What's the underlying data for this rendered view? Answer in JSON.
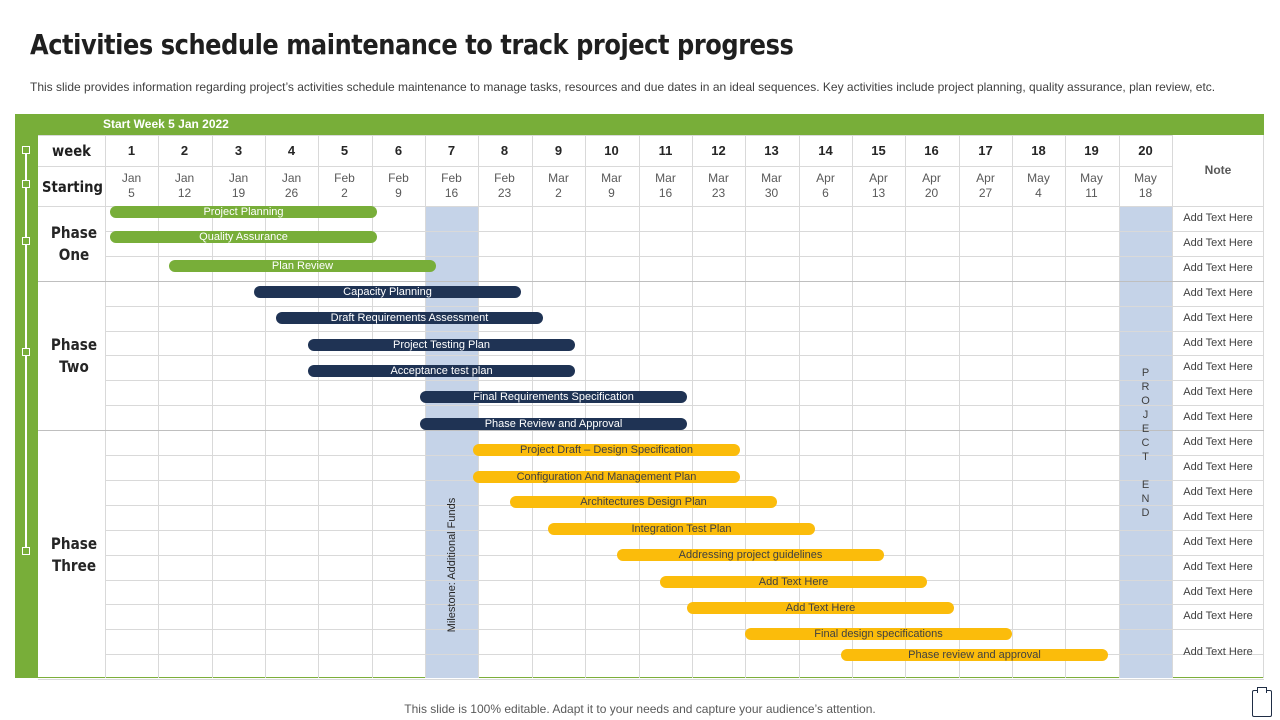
{
  "title": "Activities schedule maintenance to track project progress",
  "subtitle": "This slide provides information regarding project’s activities schedule maintenance to manage tasks, resources and due dates in an ideal sequences. Key activities include project planning, quality assurance, plan review, etc.",
  "start_week": "Start Week 5 Jan 2022",
  "header": {
    "week_label": "week",
    "starting_label": "Starting",
    "note_label": "Note"
  },
  "weeks": [
    {
      "num": "1",
      "month": "Jan",
      "day": "5"
    },
    {
      "num": "2",
      "month": "Jan",
      "day": "12"
    },
    {
      "num": "3",
      "month": "Jan",
      "day": "19"
    },
    {
      "num": "4",
      "month": "Jan",
      "day": "26"
    },
    {
      "num": "5",
      "month": "Feb",
      "day": "2"
    },
    {
      "num": "6",
      "month": "Feb",
      "day": "9"
    },
    {
      "num": "7",
      "month": "Feb",
      "day": "16"
    },
    {
      "num": "8",
      "month": "Feb",
      "day": "23"
    },
    {
      "num": "9",
      "month": "Mar",
      "day": "2"
    },
    {
      "num": "10",
      "month": "Mar",
      "day": "9"
    },
    {
      "num": "11",
      "month": "Mar",
      "day": "16"
    },
    {
      "num": "12",
      "month": "Mar",
      "day": "23"
    },
    {
      "num": "13",
      "month": "Mar",
      "day": "30"
    },
    {
      "num": "14",
      "month": "Apr",
      "day": "6"
    },
    {
      "num": "15",
      "month": "Apr",
      "day": "13"
    },
    {
      "num": "16",
      "month": "Apr",
      "day": "20"
    },
    {
      "num": "17",
      "month": "Apr",
      "day": "27"
    },
    {
      "num": "18",
      "month": "May",
      "day": "4"
    },
    {
      "num": "19",
      "month": "May",
      "day": "11"
    },
    {
      "num": "20",
      "month": "May",
      "day": "18"
    }
  ],
  "phases": [
    {
      "name": "Phase One"
    },
    {
      "name": "Phase Two"
    },
    {
      "name": "Phase Three"
    }
  ],
  "milestone": "Milestone: Additional Funds",
  "project_end": "P\nR\nO\nJ\nE\nC\nT\n\nE\nN\nD",
  "tasks": [
    {
      "label": "Project Planning",
      "phase": "one",
      "color": "green",
      "start_week": 1.1,
      "end_week": 6.1
    },
    {
      "label": "Quality Assurance",
      "phase": "one",
      "color": "green",
      "start_week": 1.1,
      "end_week": 6.1
    },
    {
      "label": "Plan Review",
      "phase": "one",
      "color": "green",
      "start_week": 2.2,
      "end_week": 7.2
    },
    {
      "label": "Capacity Planning",
      "phase": "two",
      "color": "navy",
      "start_week": 3.8,
      "end_week": 8.8
    },
    {
      "label": "Draft Requirements  Assessment",
      "phase": "two",
      "color": "navy",
      "start_week": 4.2,
      "end_week": 9.2
    },
    {
      "label": "Project Testing Plan",
      "phase": "two",
      "color": "navy",
      "start_week": 4.8,
      "end_week": 9.8
    },
    {
      "label": "Acceptance test plan",
      "phase": "two",
      "color": "navy",
      "start_week": 4.8,
      "end_week": 9.8
    },
    {
      "label": "Final Requirements Specification",
      "phase": "two",
      "color": "navy",
      "start_week": 6.9,
      "end_week": 11.9
    },
    {
      "label": "Phase Review and Approval",
      "phase": "two",
      "color": "navy",
      "start_week": 6.9,
      "end_week": 11.9
    },
    {
      "label": "Project  Draft – Design Specification",
      "phase": "three",
      "color": "yellow",
      "start_week": 7.9,
      "end_week": 12.9
    },
    {
      "label": "Configuration And Management  Plan",
      "phase": "three",
      "color": "yellow",
      "start_week": 7.9,
      "end_week": 12.9
    },
    {
      "label": "Architectures Design Plan",
      "phase": "three",
      "color": "yellow",
      "start_week": 8.6,
      "end_week": 13.6
    },
    {
      "label": "Integration  Test Plan",
      "phase": "three",
      "color": "yellow",
      "start_week": 9.3,
      "end_week": 14.3
    },
    {
      "label": "Addressing project guidelines",
      "phase": "three",
      "color": "yellow",
      "start_week": 10.6,
      "end_week": 15.6
    },
    {
      "label": "Add Text Here",
      "phase": "three",
      "color": "yellow",
      "start_week": 11.4,
      "end_week": 16.4
    },
    {
      "label": "Add Text Here",
      "phase": "three",
      "color": "yellow",
      "start_week": 11.9,
      "end_week": 16.9
    },
    {
      "label": "Final design specifications",
      "phase": "three",
      "color": "yellow",
      "start_week": 13.0,
      "end_week": 18.0
    },
    {
      "label": "Phase review and approval",
      "phase": "three",
      "color": "yellow",
      "start_week": 14.8,
      "end_week": 19.8
    }
  ],
  "notes": [
    "Add Text Here",
    "Add Text Here",
    "Add Text Here",
    "Add Text Here",
    "Add Text Here",
    "Add Text Here",
    "Add Text Here",
    "Add Text Here",
    "Add Text Here",
    "Add Text Here",
    "Add Text Here",
    "Add Text Here",
    "Add Text Here",
    "Add Text Here",
    "Add Text Here",
    "Add Text Here",
    "Add Text Here",
    "Add Text Here"
  ],
  "footer": "This slide is 100% editable. Adapt it to your needs and capture your audience’s attention.",
  "colors": {
    "green": "#78ae39",
    "navy": "#1f3354",
    "yellow": "#fbbc0b",
    "highlight": "#c5d3e8"
  }
}
